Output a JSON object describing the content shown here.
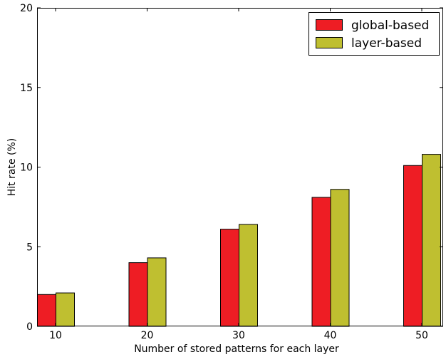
{
  "chart_data": {
    "type": "bar",
    "title": "",
    "xlabel": "Number of stored patterns for each layer",
    "ylabel": "Hit rate (%)",
    "categories": [
      "10",
      "20",
      "30",
      "40",
      "50"
    ],
    "ylim": [
      0,
      20
    ],
    "yticks": [
      0,
      5,
      10,
      15,
      20
    ],
    "grid": false,
    "legend_position": "top-right",
    "series": [
      {
        "name": "global-based",
        "color": "#ee1d24",
        "values": [
          2.0,
          4.0,
          6.1,
          8.1,
          10.1
        ]
      },
      {
        "name": "layer-based",
        "color": "#bfbf30",
        "values": [
          2.1,
          4.3,
          6.4,
          8.6,
          10.8
        ]
      }
    ]
  }
}
